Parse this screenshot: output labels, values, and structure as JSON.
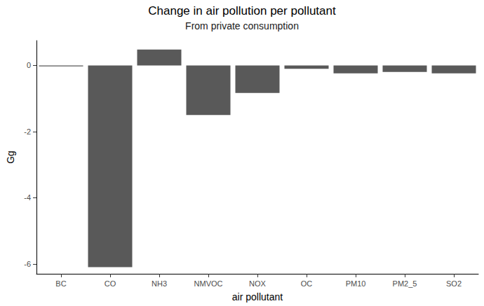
{
  "chart_data": {
    "type": "bar",
    "title": "Change in air pollution per pollutant",
    "subtitle": "From private consumption",
    "x_label": "air pollutant",
    "y_label": "Gg",
    "categories": [
      "BC",
      "CO",
      "NH3",
      "NMVOC",
      "NOX",
      "OC",
      "PM10",
      "PM2_5",
      "SO2"
    ],
    "values": [
      -0.03,
      -6.1,
      0.48,
      -1.5,
      -0.83,
      -0.1,
      -0.24,
      -0.2,
      -0.24
    ],
    "color": "#595959",
    "ylim": [
      -6.3,
      0.75
    ],
    "yticks": [
      -6,
      -4,
      -2,
      0
    ],
    "grid": false
  }
}
